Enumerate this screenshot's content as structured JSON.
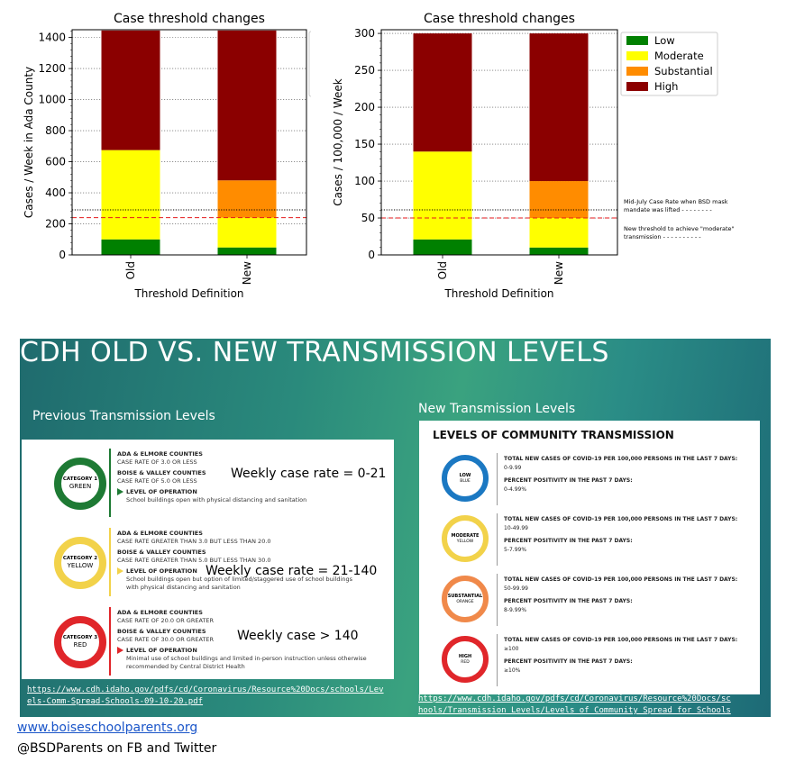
{
  "chart_data": [
    {
      "type": "bar",
      "stacked": true,
      "title": "Case threshold changes",
      "xlabel": "Threshold Definition",
      "ylabel": "Cases / Week in Ada County",
      "categories": [
        "Old",
        "New"
      ],
      "ylim": [
        0,
        1450
      ],
      "yticks": [
        0,
        200,
        400,
        600,
        800,
        1000,
        1200,
        1400
      ],
      "grid": "y",
      "series": [
        {
          "name": "Low",
          "color": "#008000",
          "values": [
            100,
            48
          ]
        },
        {
          "name": "Moderate",
          "color": "#ffff00",
          "values": [
            575,
            192
          ]
        },
        {
          "name": "Substantial",
          "color": "#ff8c00",
          "values": [
            0,
            240
          ]
        },
        {
          "name": "High",
          "color": "#8b0000",
          "values": [
            770,
            965
          ]
        }
      ],
      "reference_lines": [
        {
          "value": 290,
          "style": "dotted",
          "color": "#000000"
        },
        {
          "value": 240,
          "style": "dashed",
          "color": "#e41a1c"
        }
      ]
    },
    {
      "type": "bar",
      "stacked": true,
      "title": "Case threshold changes",
      "xlabel": "Threshold Definition",
      "ylabel": "Cases / 100,000 / Week",
      "categories": [
        "Old",
        "New"
      ],
      "ylim": [
        0,
        305
      ],
      "yticks": [
        0,
        50,
        100,
        150,
        200,
        250,
        300
      ],
      "grid": "y",
      "legend": "upper-right-outside",
      "series": [
        {
          "name": "Low",
          "color": "#008000",
          "values": [
            21,
            10
          ]
        },
        {
          "name": "Moderate",
          "color": "#ffff00",
          "values": [
            119,
            40
          ]
        },
        {
          "name": "Substantial",
          "color": "#ff8c00",
          "values": [
            0,
            50
          ]
        },
        {
          "name": "High",
          "color": "#8b0000",
          "values": [
            160,
            200
          ]
        }
      ],
      "reference_lines": [
        {
          "value": 61,
          "style": "dotted",
          "color": "#000000",
          "label_lines": [
            "Mid-July Case Rate when BSD mask",
            "mandate was lifted - - - - - - - -"
          ]
        },
        {
          "value": 50,
          "style": "dashed",
          "color": "#e41a1c",
          "label_lines": [
            "New threshold to achieve \"moderate\"",
            "transmission - - - - - - - - - -"
          ]
        }
      ]
    }
  ],
  "slide": {
    "title": "CDH OLD VS. NEW TRANSMISSION LEVELS",
    "previous_heading": "Previous Transmission Levels",
    "new_heading": "New Transmission Levels",
    "old_categories": [
      {
        "ring_line1": "CATEGORY 1",
        "ring_line2": "GREEN",
        "color": "#1e7a34",
        "ada_heading": "ADA & ELMORE COUNTIES",
        "ada_rate": "CASE RATE OF 3.0 OR LESS",
        "boise_heading": "BOISE & VALLEY COUNTIES",
        "boise_rate": "CASE RATE OF 5.0 OR LESS",
        "level_heading": "LEVEL OF OPERATION",
        "level_text": [
          "School buildings open with physical distancing and sanitation"
        ],
        "weekly": "Weekly case rate = 0-21"
      },
      {
        "ring_line1": "CATEGORY 2",
        "ring_line2": "YELLOW",
        "color": "#f2d24a",
        "ada_heading": "ADA & ELMORE COUNTIES",
        "ada_rate": "CASE RATE GREATER THAN 3.0 BUT LESS THAN 20.0",
        "boise_heading": "BOISE & VALLEY COUNTIES",
        "boise_rate": "CASE RATE GREATER THAN 5.0 BUT LESS THAN 30.0",
        "level_heading": "LEVEL OF OPERATION",
        "level_text": [
          "School buildings open but option of limited/staggered use of school buildings",
          "with physical distancing and sanitation"
        ],
        "weekly": "Weekly case rate = 21-140"
      },
      {
        "ring_line1": "CATEGORY 3",
        "ring_line2": "RED",
        "color": "#e0262a",
        "ada_heading": "ADA & ELMORE COUNTIES",
        "ada_rate": "CASE RATE OF 20.0 OR GREATER",
        "boise_heading": "BOISE & VALLEY COUNTIES",
        "boise_rate": "CASE RATE OF 30.0 OR GREATER",
        "level_heading": "LEVEL OF OPERATION",
        "level_text": [
          "Minimal use of school buildings and limited in-person instruction unless otherwise",
          "recommended by Central District Health"
        ],
        "weekly": "Weekly case > 140"
      }
    ],
    "new_panel_title": "LEVELS OF COMMUNITY TRANSMISSION",
    "new_levels": [
      {
        "ring_line1": "LOW",
        "ring_line2": "BLUE",
        "color": "#1b78c2",
        "cases_heading": "TOTAL NEW CASES OF COVID-19 PER 100,000 PERSONS IN THE LAST 7 DAYS:",
        "cases": "0-9.99",
        "positivity_heading": "PERCENT POSITIVITY IN THE PAST 7 DAYS:",
        "positivity": "0-4.99%"
      },
      {
        "ring_line1": "MODERATE",
        "ring_line2": "YELLOW",
        "color": "#f2d24a",
        "cases_heading": "TOTAL NEW CASES OF COVID-19 PER 100,000 PERSONS IN THE LAST 7 DAYS:",
        "cases": "10-49.99",
        "positivity_heading": "PERCENT POSITIVITY IN THE PAST 7 DAYS:",
        "positivity": "5-7.99%"
      },
      {
        "ring_line1": "SUBSTANTIAL",
        "ring_line2": "ORANGE",
        "color": "#f0894a",
        "cases_heading": "TOTAL NEW CASES OF COVID-19 PER 100,000 PERSONS IN THE LAST 7 DAYS:",
        "cases": "50-99.99",
        "positivity_heading": "PERCENT POSITIVITY IN THE PAST 7 DAYS:",
        "positivity": "8-9.99%"
      },
      {
        "ring_line1": "HIGH",
        "ring_line2": "RED",
        "color": "#e0262a",
        "cases_heading": "TOTAL NEW CASES OF COVID-19 PER 100,000 PERSONS IN THE LAST 7 DAYS:",
        "cases": "≥100",
        "positivity_heading": "PERCENT POSITIVITY IN THE PAST 7 DAYS:",
        "positivity": "≥10%"
      }
    ],
    "old_url_lines": [
      "https://www.cdh.idaho.gov/pdfs/cd/Coronavirus/Resource%20Docs/schools/Lev",
      "els-Comm-Spread-Schools-09-10-20.pdf"
    ],
    "new_url_lines": [
      "https://www.cdh.idaho.gov/pdfs/cd/Coronavirus/Resource%20Docs/sc",
      "hools/Transmission_Levels/Levels_of_Community_Spread_for_Schools"
    ]
  },
  "footer": {
    "link_text": "www.boiseschoolparents.org",
    "social_text": "@BSDParents on FB and Twitter"
  }
}
